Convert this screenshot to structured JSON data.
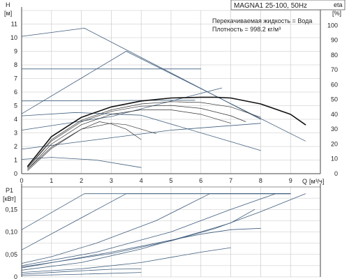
{
  "chart_data": [
    {
      "type": "line",
      "title": "MAGNA1 25-100, 50Hz",
      "annotations": [
        "Перекачиваемая жидкость = Вода",
        "Плотность = 998.2 кг/м³"
      ],
      "ylabel_name": "H",
      "ylabel_unit": "[м]",
      "y2label_name": "eta",
      "y2label_unit": "[%]",
      "xlabel_name": "Q",
      "xlabel_unit": "[м³/ч]",
      "xlim": [
        0,
        10
      ],
      "ylim": [
        0,
        12
      ],
      "y2lim": [
        0,
        110
      ],
      "xticks": [
        "0",
        "1",
        "2",
        "3",
        "4",
        "5",
        "6",
        "7",
        "8",
        "9"
      ],
      "yticks": [
        "0",
        "1",
        "2",
        "3",
        "4",
        "5",
        "6",
        "7",
        "8",
        "9",
        "10",
        "11"
      ],
      "y2ticks": [
        "0",
        "10",
        "20",
        "30",
        "40",
        "50",
        "60",
        "70",
        "80",
        "90",
        "100"
      ],
      "grid": true,
      "head_series": [
        {
          "style": "thin",
          "points": [
            [
              0,
              10.1
            ],
            [
              2.1,
              10.7
            ],
            [
              8.0,
              4.0
            ]
          ]
        },
        {
          "style": "thin",
          "points": [
            [
              0,
              4.4
            ],
            [
              3.5,
              9.0
            ],
            [
              9.5,
              2.4
            ]
          ]
        },
        {
          "style": "thin",
          "points": [
            [
              0,
              7.7
            ],
            [
              6.0,
              7.7
            ]
          ]
        },
        {
          "style": "thin",
          "points": [
            [
              0,
              4.25
            ],
            [
              1.8,
              4.5
            ],
            [
              4.0,
              4.3
            ],
            [
              8.0,
              1.7
            ]
          ]
        },
        {
          "style": "thin",
          "points": [
            [
              0,
              3.2
            ],
            [
              3.0,
              4.2
            ],
            [
              6.7,
              6.3
            ]
          ]
        },
        {
          "style": "thin",
          "points": [
            [
              0,
              1.8
            ],
            [
              5.0,
              3.2
            ],
            [
              8.0,
              3.7
            ]
          ]
        },
        {
          "style": "thin",
          "points": [
            [
              0,
              1.05
            ],
            [
              1.0,
              1.2
            ],
            [
              2.5,
              1.0
            ],
            [
              4.0,
              0.45
            ]
          ]
        },
        {
          "style": "thin",
          "points": [
            [
              0,
              5.35
            ],
            [
              5.8,
              5.4
            ]
          ]
        }
      ],
      "eta_series": [
        {
          "style": "bold",
          "points": [
            [
              0.2,
              5
            ],
            [
              1.0,
              25
            ],
            [
              2.0,
              38
            ],
            [
              3.0,
              45
            ],
            [
              4.0,
              49
            ],
            [
              5.0,
              51
            ],
            [
              6.0,
              51.5
            ],
            [
              6.5,
              51.5
            ],
            [
              7.0,
              51
            ],
            [
              8.0,
              47
            ],
            [
              9.0,
              40
            ],
            [
              9.5,
              33
            ]
          ]
        },
        {
          "style": "thin",
          "points": [
            [
              0.2,
              4
            ],
            [
              1.0,
              23
            ],
            [
              2.0,
              36
            ],
            [
              3.0,
              43
            ],
            [
              4.0,
              47
            ],
            [
              5.0,
              48.5
            ],
            [
              6.0,
              48
            ],
            [
              7.0,
              45
            ],
            [
              8.0,
              38
            ]
          ]
        },
        {
          "style": "thin",
          "points": [
            [
              0.2,
              4
            ],
            [
              1.0,
              22
            ],
            [
              2.0,
              35
            ],
            [
              3.0,
              42
            ],
            [
              4.0,
              45.5
            ],
            [
              5.0,
              46
            ],
            [
              6.0,
              44
            ],
            [
              7.0,
              39
            ],
            [
              7.5,
              35
            ]
          ]
        },
        {
          "style": "thin",
          "points": [
            [
              0.2,
              3
            ],
            [
              1.0,
              20
            ],
            [
              2.0,
              33
            ],
            [
              3.0,
              40
            ],
            [
              4.0,
              43
            ],
            [
              5.0,
              43
            ],
            [
              6.0,
              40
            ],
            [
              7.0,
              34
            ]
          ]
        },
        {
          "style": "thin",
          "points": [
            [
              0.2,
              3
            ],
            [
              1.0,
              18
            ],
            [
              2.0,
              30
            ],
            [
              3.0,
              34
            ],
            [
              3.5,
              33
            ],
            [
              4.0,
              30
            ],
            [
              4.5,
              27
            ]
          ]
        },
        {
          "style": "thin",
          "points": [
            [
              0.2,
              2
            ],
            [
              1.0,
              17
            ],
            [
              2.0,
              30
            ],
            [
              2.6,
              35
            ],
            [
              3.0,
              33.5
            ],
            [
              3.5,
              30
            ],
            [
              4.0,
              23
            ]
          ]
        }
      ]
    },
    {
      "type": "line",
      "ylabel_name": "P1",
      "ylabel_unit": "[кВт]",
      "xlim": [
        0,
        10
      ],
      "ylim": [
        0,
        0.2
      ],
      "yticks": [
        "0",
        "0,05",
        "0,10",
        "0,15"
      ],
      "grid": true,
      "power_series": [
        {
          "points": [
            [
              0,
              0.105
            ],
            [
              2.1,
              0.185
            ],
            [
              9.0,
              0.185
            ]
          ]
        },
        {
          "points": [
            [
              0,
              0.06
            ],
            [
              3.5,
              0.185
            ],
            [
              9.0,
              0.185
            ]
          ]
        },
        {
          "points": [
            [
              0,
              0.03
            ],
            [
              1.0,
              0.045
            ],
            [
              2.5,
              0.075
            ],
            [
              4.5,
              0.125
            ],
            [
              6.3,
              0.185
            ],
            [
              9.0,
              0.185
            ]
          ]
        },
        {
          "points": [
            [
              0,
              0.025
            ],
            [
              2.5,
              0.055
            ],
            [
              5.0,
              0.1
            ],
            [
              7.0,
              0.15
            ],
            [
              8.5,
              0.185
            ],
            [
              9.0,
              0.185
            ]
          ]
        },
        {
          "points": [
            [
              0,
              0.022
            ],
            [
              3.0,
              0.052
            ],
            [
              5.0,
              0.08
            ],
            [
              6.5,
              0.108
            ],
            [
              8.0,
              0.145
            ],
            [
              9.5,
              0.185
            ]
          ]
        },
        {
          "points": [
            [
              0,
              0.015
            ],
            [
              2.0,
              0.032
            ],
            [
              4.0,
              0.062
            ],
            [
              6.0,
              0.1
            ],
            [
              7.0,
              0.12
            ],
            [
              7.8,
              0.15
            ]
          ]
        },
        {
          "points": [
            [
              0,
              0.02
            ],
            [
              3.0,
              0.055
            ],
            [
              6.0,
              0.095
            ],
            [
              7.0,
              0.105
            ],
            [
              8.0,
              0.108
            ]
          ]
        },
        {
          "points": [
            [
              0,
              0.01
            ],
            [
              2.0,
              0.018
            ],
            [
              4.0,
              0.032
            ],
            [
              6.0,
              0.055
            ],
            [
              7.0,
              0.065
            ]
          ]
        },
        {
          "points": [
            [
              0,
              0.006
            ],
            [
              1.5,
              0.012
            ],
            [
              3.0,
              0.017
            ],
            [
              4.0,
              0.018
            ]
          ]
        },
        {
          "points": [
            [
              0,
              0.003
            ],
            [
              2.0,
              0.006
            ],
            [
              4.0,
              0.01
            ]
          ]
        }
      ]
    }
  ]
}
